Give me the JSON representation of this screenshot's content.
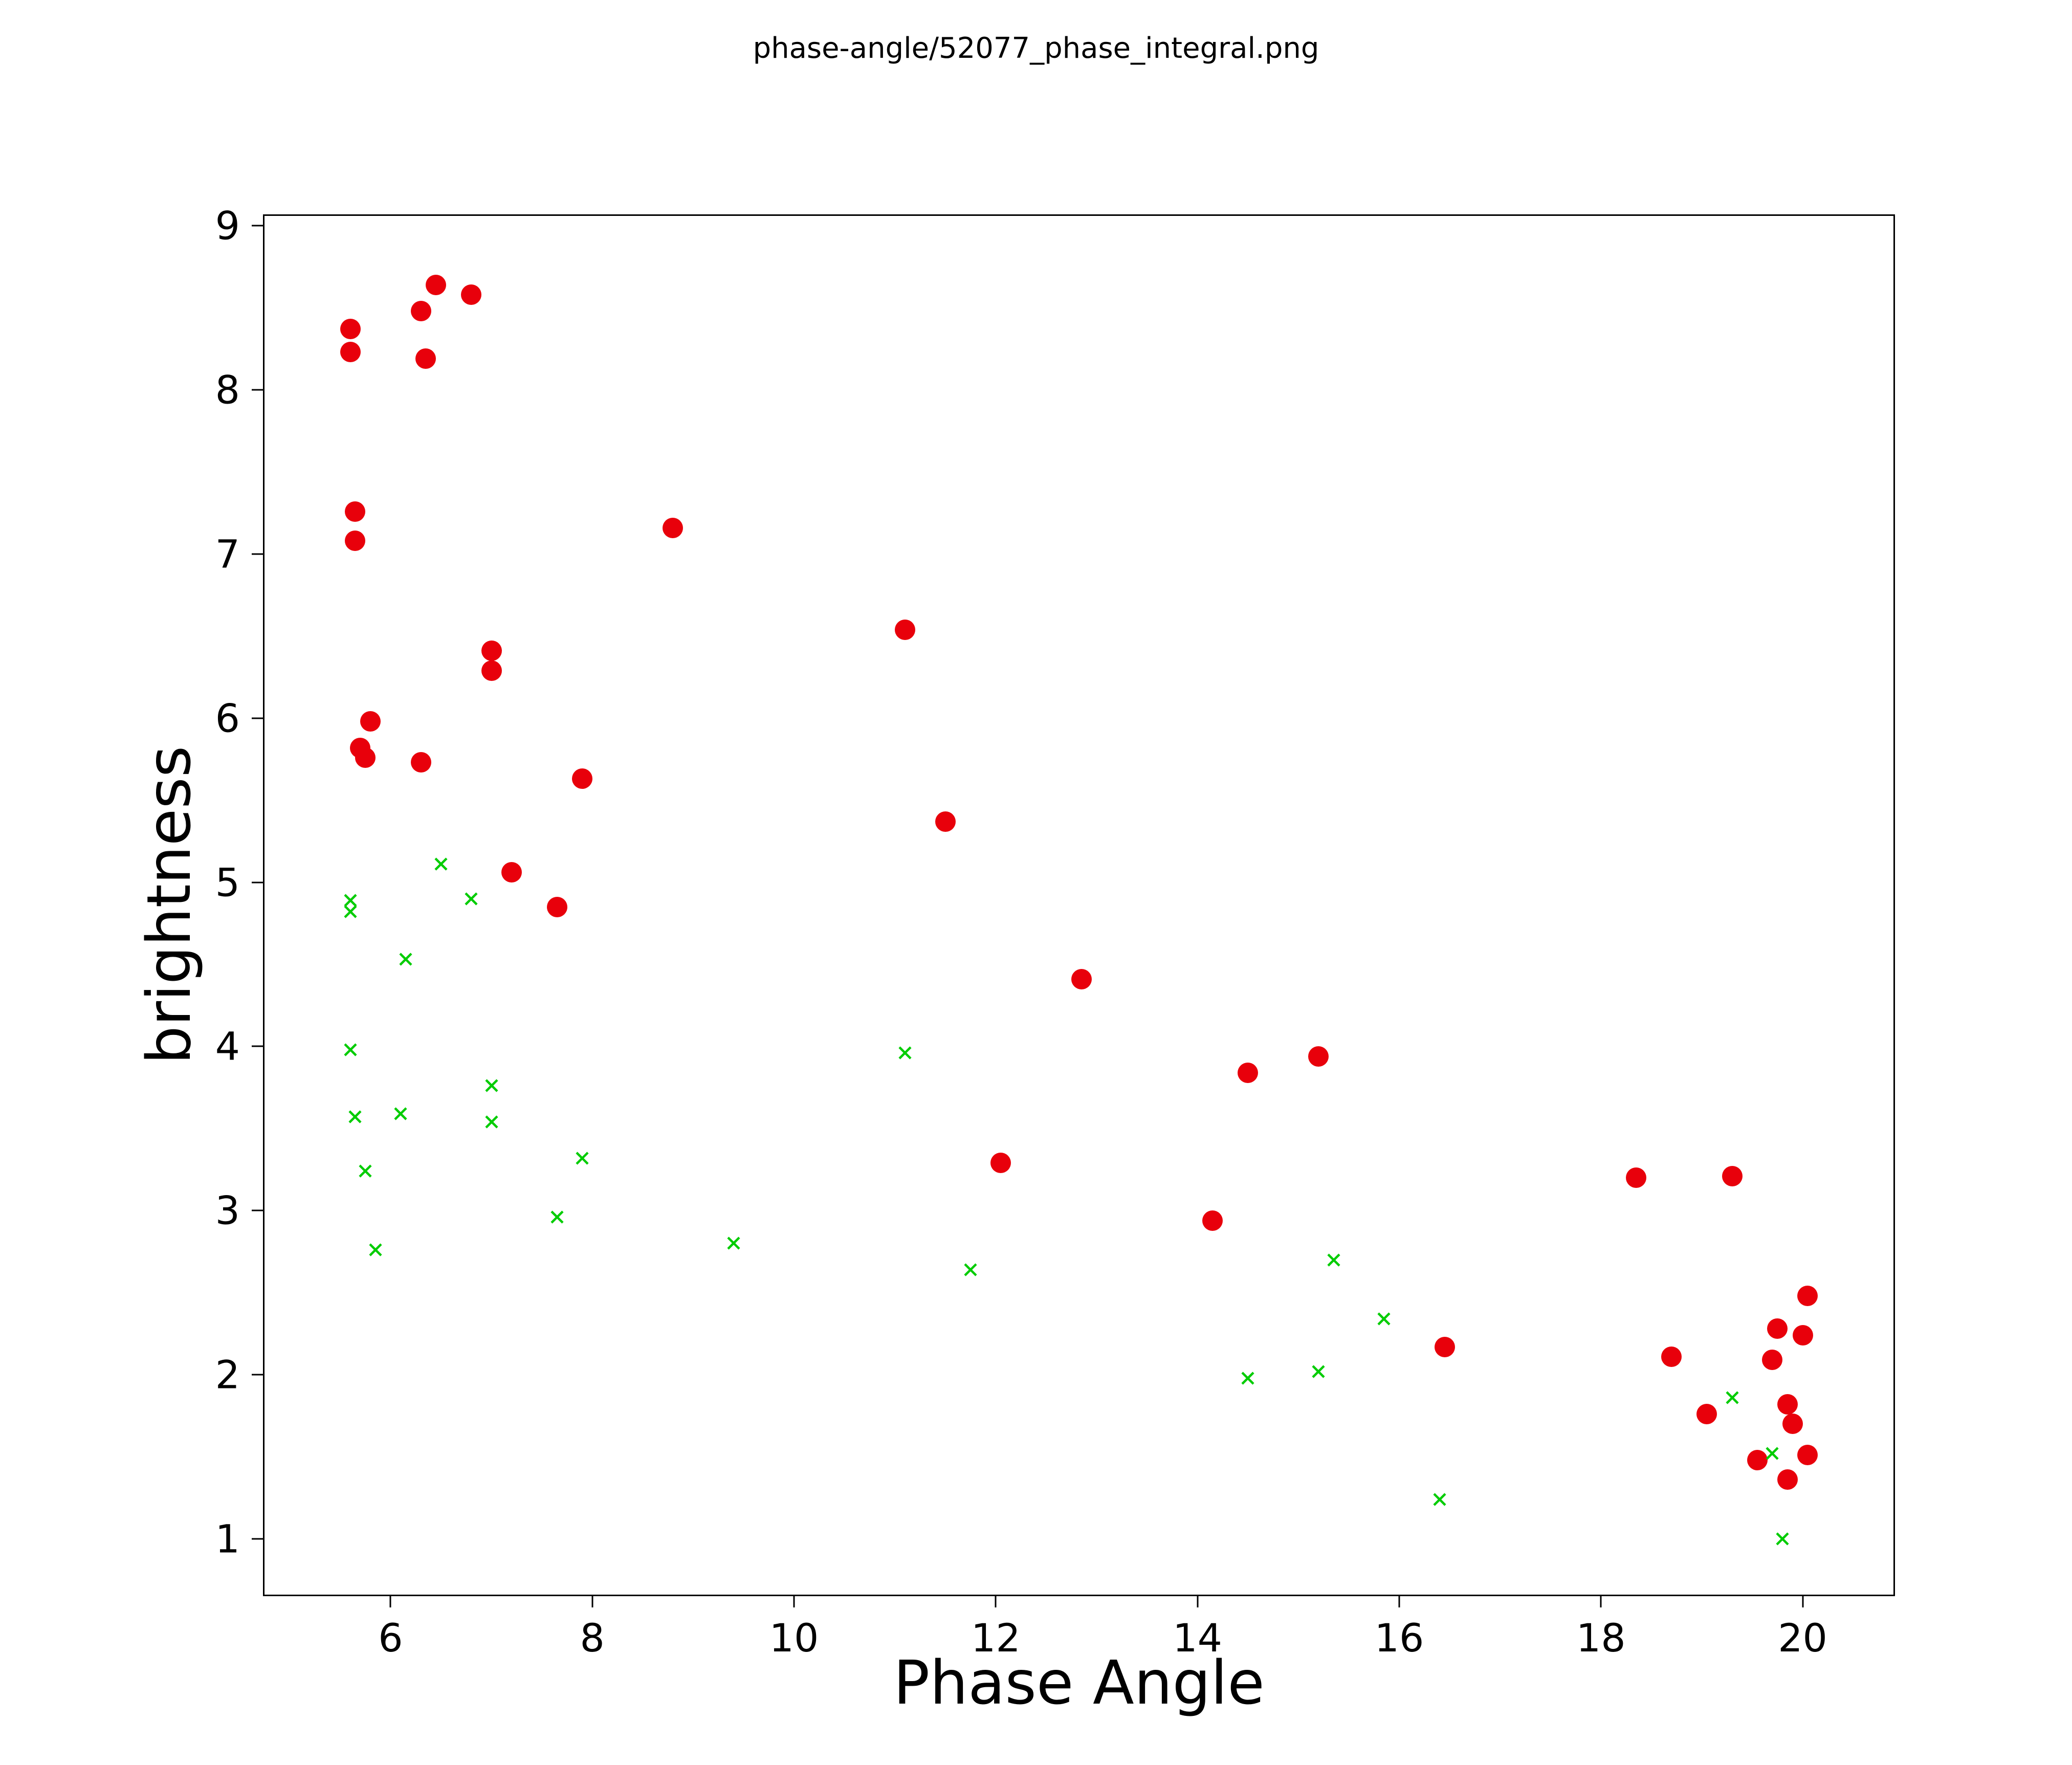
{
  "page": {
    "title": "phase-angle/52077_phase_integral.png"
  },
  "chart_data": {
    "type": "scatter",
    "title": "phase-angle/52077_phase_integral.png",
    "xlabel": "Phase Angle",
    "ylabel": "brightness",
    "xlim": [
      4.75,
      20.9
    ],
    "ylim": [
      0.66,
      9.06
    ],
    "x_ticks": [
      6,
      8,
      10,
      12,
      14,
      16,
      18,
      20
    ],
    "y_ticks": [
      1,
      2,
      3,
      4,
      5,
      6,
      7,
      8,
      9
    ],
    "grid": false,
    "legend": "none",
    "background_color": "#ffffff",
    "series": [
      {
        "name": "red-circles",
        "marker": "circle",
        "color": "#e8000b",
        "points": [
          [
            5.6,
            8.37
          ],
          [
            5.6,
            8.23
          ],
          [
            6.3,
            8.48
          ],
          [
            6.45,
            8.64
          ],
          [
            6.8,
            8.58
          ],
          [
            6.35,
            8.19
          ],
          [
            5.65,
            7.26
          ],
          [
            5.65,
            7.08
          ],
          [
            8.8,
            7.16
          ],
          [
            11.1,
            6.54
          ],
          [
            7.0,
            6.41
          ],
          [
            7.0,
            6.29
          ],
          [
            5.8,
            5.98
          ],
          [
            5.7,
            5.82
          ],
          [
            5.75,
            5.76
          ],
          [
            6.3,
            5.73
          ],
          [
            7.9,
            5.63
          ],
          [
            11.5,
            5.37
          ],
          [
            7.2,
            5.06
          ],
          [
            7.65,
            4.85
          ],
          [
            12.85,
            4.41
          ],
          [
            15.2,
            3.94
          ],
          [
            14.5,
            3.84
          ],
          [
            12.05,
            3.29
          ],
          [
            14.15,
            2.94
          ],
          [
            18.35,
            3.2
          ],
          [
            19.3,
            3.21
          ],
          [
            16.45,
            2.17
          ],
          [
            18.7,
            2.11
          ],
          [
            19.05,
            1.76
          ],
          [
            19.55,
            1.48
          ],
          [
            19.75,
            2.28
          ],
          [
            19.7,
            2.09
          ],
          [
            20.0,
            2.24
          ],
          [
            20.05,
            2.48
          ],
          [
            19.85,
            1.82
          ],
          [
            19.9,
            1.7
          ],
          [
            19.85,
            1.36
          ],
          [
            20.05,
            1.51
          ]
        ]
      },
      {
        "name": "green-x",
        "marker": "x",
        "color": "#00cc00",
        "points": [
          [
            5.6,
            4.89
          ],
          [
            5.6,
            4.82
          ],
          [
            6.5,
            5.11
          ],
          [
            6.8,
            4.9
          ],
          [
            6.15,
            4.53
          ],
          [
            5.6,
            3.98
          ],
          [
            7.0,
            3.76
          ],
          [
            7.0,
            3.54
          ],
          [
            5.65,
            3.57
          ],
          [
            6.1,
            3.59
          ],
          [
            5.75,
            3.24
          ],
          [
            7.9,
            3.32
          ],
          [
            5.85,
            2.76
          ],
          [
            7.65,
            2.96
          ],
          [
            9.4,
            2.8
          ],
          [
            11.1,
            3.96
          ],
          [
            11.75,
            2.64
          ],
          [
            15.35,
            2.7
          ],
          [
            15.85,
            2.34
          ],
          [
            14.5,
            1.98
          ],
          [
            15.2,
            2.02
          ],
          [
            16.4,
            1.24
          ],
          [
            19.3,
            1.86
          ],
          [
            19.7,
            1.52
          ],
          [
            19.8,
            1.0
          ]
        ]
      }
    ]
  }
}
